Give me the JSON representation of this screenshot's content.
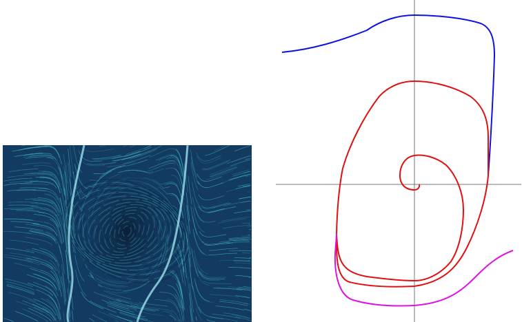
{
  "flow_field": {
    "background": "#133a61",
    "line_color": "#47c4cf",
    "vortex_line_color": "#0e2a47"
  },
  "phase_portrait": {
    "axes_color": "#777777",
    "trajectories": [
      {
        "color": "#1010e0"
      },
      {
        "color": "#e01010"
      },
      {
        "color": "#e010e0"
      }
    ]
  }
}
